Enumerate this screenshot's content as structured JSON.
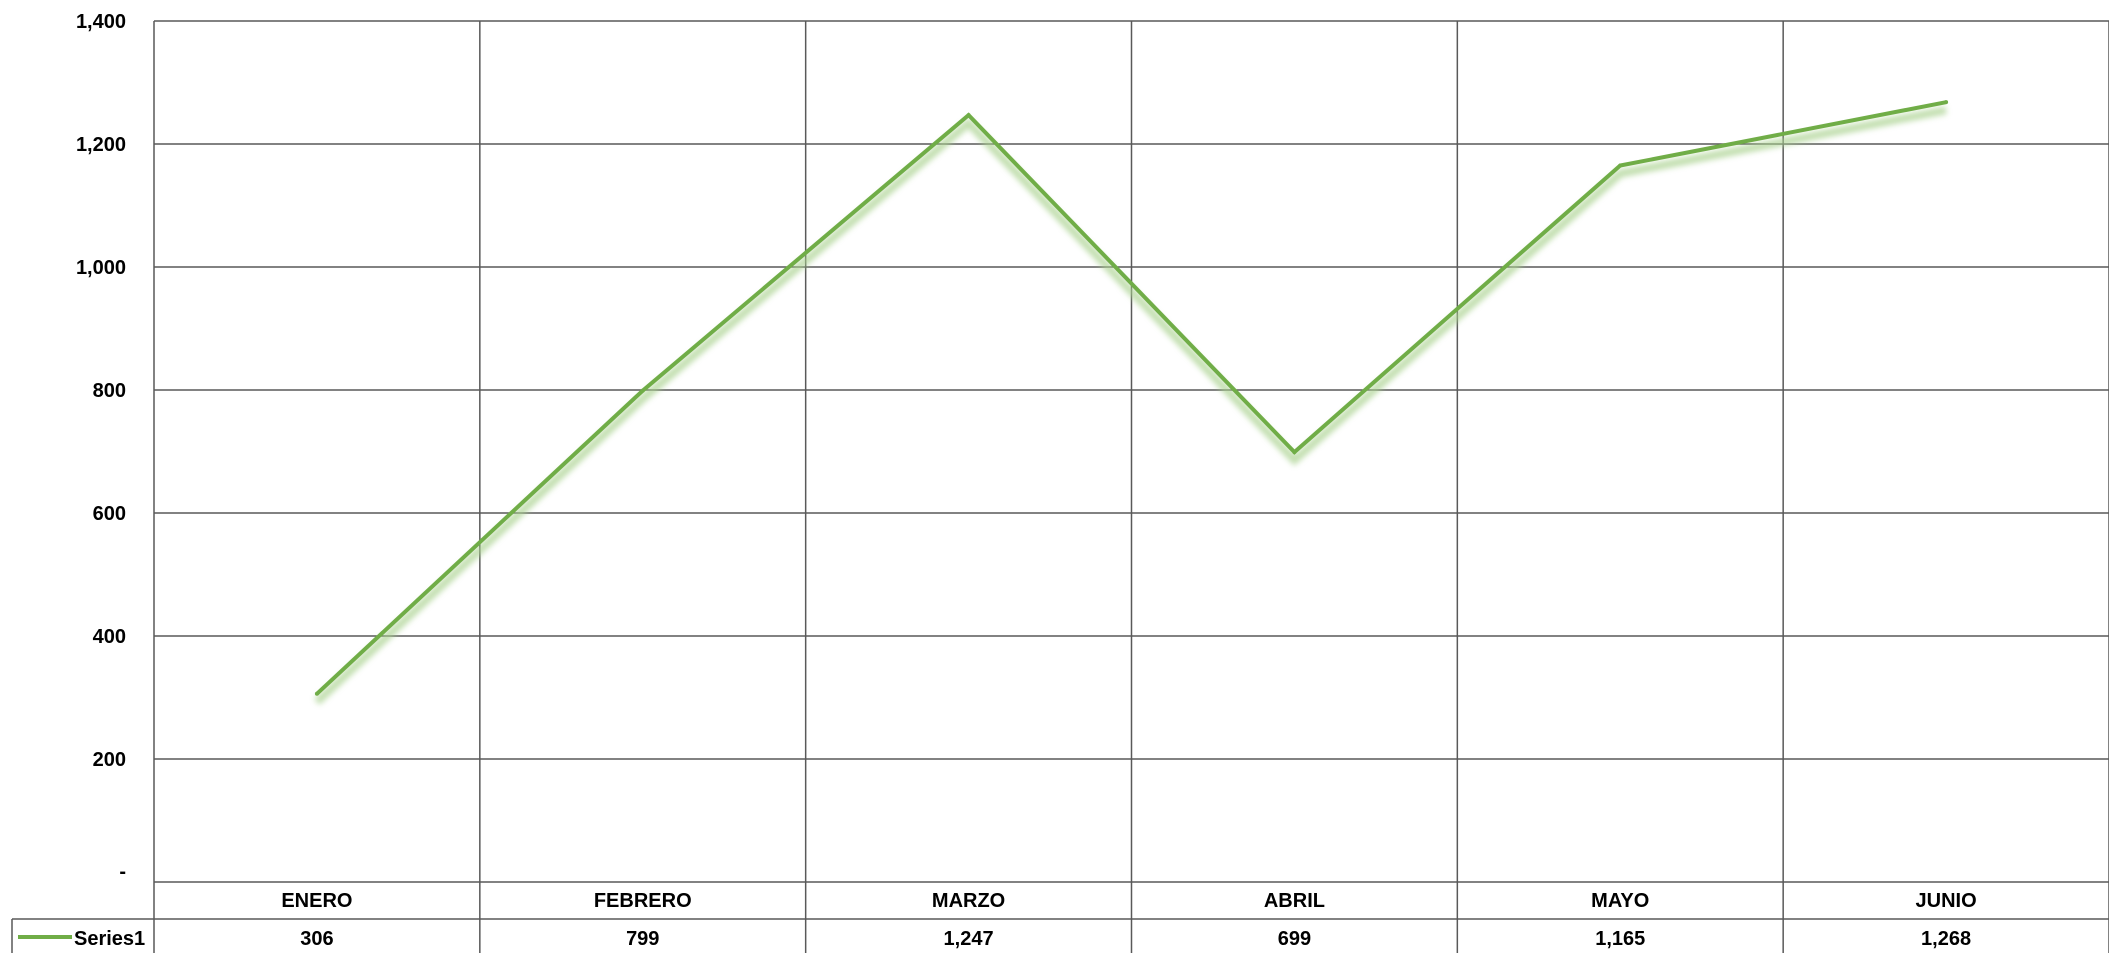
{
  "chart_data": {
    "type": "line",
    "title": "",
    "xlabel": "",
    "ylabel": "",
    "categories": [
      "ENERO",
      "FEBRERO",
      "MARZO",
      "ABRIL",
      "MAYO",
      "JUNIO"
    ],
    "series": [
      {
        "name": "Series1",
        "values": [
          306,
          799,
          1247,
          699,
          1165,
          1268
        ],
        "value_labels": [
          "306",
          "799",
          "1,247",
          "699",
          "1,165",
          "1,268"
        ],
        "color": "#70ad47"
      }
    ],
    "ylim": [
      0,
      1400
    ],
    "yticks": [
      0,
      200,
      400,
      600,
      800,
      1000,
      1200,
      1400
    ],
    "ytick_labels": [
      "-",
      "200",
      "400",
      "600",
      "800",
      "1,000",
      "1,200",
      "1,400"
    ],
    "grid": true,
    "legend": "data-table",
    "data_table": true,
    "gridline_color": "#595959"
  }
}
